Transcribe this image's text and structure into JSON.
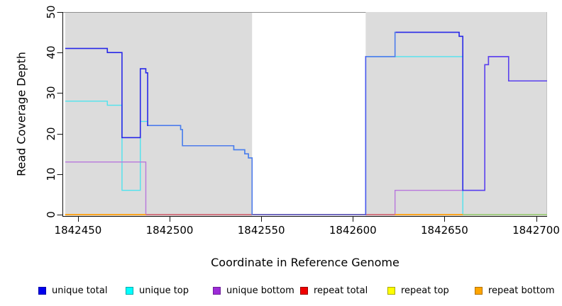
{
  "chart_data": {
    "type": "line",
    "style": "step",
    "title": "",
    "xlabel": "Coordinate in Reference Genome",
    "ylabel": "Read Coverage Depth",
    "xlim": [
      1842441.5,
      1842706
    ],
    "ylim": [
      0,
      50
    ],
    "x_ticks": [
      1842450,
      1842500,
      1842550,
      1842600,
      1842650,
      1842700
    ],
    "y_ticks": [
      0,
      10,
      20,
      30,
      40,
      50
    ],
    "grid": false,
    "legend_position": "bottom",
    "shaded_regions": [
      {
        "from": 1842443,
        "to": 1842545,
        "color": "#DCDCDC"
      },
      {
        "from": 1842607,
        "to": 1842706,
        "color": "#DCDCDC"
      }
    ],
    "series": [
      {
        "name": "unique total",
        "legend_fill": "#0000EE",
        "legend_border": "#0000A8",
        "line_color": "#2828E8",
        "z": 7,
        "steps": [
          [
            1842443,
            41
          ],
          [
            1842466,
            40
          ],
          [
            1842474,
            19
          ],
          [
            1842484,
            36
          ],
          [
            1842487,
            35
          ],
          [
            1842488,
            22
          ],
          [
            1842506,
            21
          ],
          [
            1842507,
            17
          ],
          [
            1842535,
            16
          ],
          [
            1842541,
            15
          ],
          [
            1842543,
            14
          ],
          [
            1842545,
            0
          ],
          [
            1842607,
            39
          ],
          [
            1842623,
            45
          ],
          [
            1842658,
            44
          ],
          [
            1842660,
            6
          ],
          [
            1842672,
            37
          ],
          [
            1842674,
            39
          ],
          [
            1842685,
            33
          ]
        ],
        "color_spans": [
          {
            "from": 1842443,
            "to": 1842488,
            "color": "#2828E8"
          },
          {
            "from": 1842488,
            "to": 1842545,
            "color": "#4D7BEC"
          },
          {
            "from": 1842545,
            "to": 1842607,
            "color": "#4A55EE"
          },
          {
            "from": 1842607,
            "to": 1842623,
            "color": "#4D7BEC"
          },
          {
            "from": 1842623,
            "to": 1842660,
            "color": "#2828E8"
          },
          {
            "from": 1842660,
            "to": 1842706,
            "color": "#5940EE"
          }
        ]
      },
      {
        "name": "unique top",
        "legend_fill": "#00FFFF",
        "legend_border": "#00A8A8",
        "line_color": "#4FE3EE",
        "z": 1,
        "steps": [
          [
            1842443,
            28
          ],
          [
            1842466,
            27
          ],
          [
            1842474,
            6
          ],
          [
            1842484,
            23
          ],
          [
            1842488,
            22
          ],
          [
            1842506,
            21
          ],
          [
            1842507,
            17
          ],
          [
            1842535,
            16
          ],
          [
            1842541,
            15
          ],
          [
            1842543,
            14
          ],
          [
            1842545,
            0
          ],
          [
            1842607,
            39
          ],
          [
            1842660,
            0
          ]
        ]
      },
      {
        "name": "unique bottom",
        "legend_fill": "#9D2BD8",
        "legend_border": "#6E1E98",
        "line_color": "#B878DC",
        "z": 2,
        "steps": [
          [
            1842443,
            13
          ],
          [
            1842487,
            0
          ],
          [
            1842623,
            6
          ],
          [
            1842672,
            37
          ],
          [
            1842674,
            39
          ],
          [
            1842685,
            33
          ]
        ]
      },
      {
        "name": "repeat total",
        "legend_fill": "#F00000",
        "legend_border": "#980000",
        "line_color": "#E02828",
        "z": 3,
        "steps": [
          [
            1842443,
            0
          ]
        ]
      },
      {
        "name": "repeat top",
        "legend_fill": "#FFFF00",
        "legend_border": "#A8A800",
        "line_color": "#F0F000",
        "z": 4,
        "steps": [
          [
            1842443,
            0
          ]
        ]
      },
      {
        "name": "repeat bottom",
        "legend_fill": "#FFA500",
        "legend_border": "#B07000",
        "line_color": "#FFA41E",
        "z": 5,
        "steps": [
          [
            1842443,
            0
          ]
        ]
      }
    ],
    "baseline_overlap_segments": [
      {
        "from": 1842443,
        "to": 1842487,
        "color": "#FFA41E"
      },
      {
        "from": 1842487,
        "to": 1842545,
        "color": "#C7669E"
      },
      {
        "from": 1842607,
        "to": 1842623,
        "color": "#C7669E"
      },
      {
        "from": 1842623,
        "to": 1842660,
        "color": "#FFA41E"
      },
      {
        "from": 1842660,
        "to": 1842706,
        "color": "#8CD8A0"
      }
    ]
  },
  "plot_colors": {
    "background": "#FFFFFF",
    "panel_shading": "#DCDCDC",
    "panel_top_line": "#8E8E8E",
    "panel_right_line": "#C2C2C2",
    "axis_color": "#111111"
  }
}
